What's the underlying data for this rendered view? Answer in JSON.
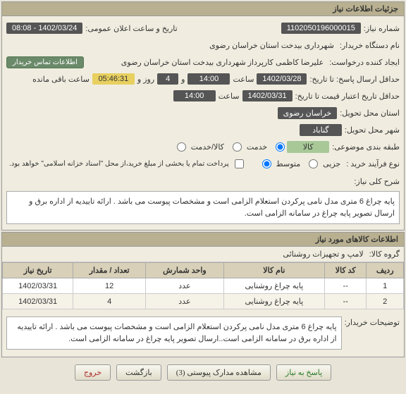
{
  "info_panel": {
    "title": "جزئیات اطلاعات نیاز",
    "need_number_label": "شماره نیاز:",
    "need_number": "1102050196000015",
    "announce_label": "تاریخ و ساعت اعلان عمومی:",
    "announce_value": "1402/03/24 - 08:08",
    "device_label": "نام دستگاه خریدار:",
    "device_value": "شهرداری بیدخت استان خراسان رضوی",
    "creator_label": "ایجاد کننده درخواست:",
    "creator_value": "علیرضا کاظمی کارپرداز شهرداری بیدخت استان خراسان رضوی",
    "contact_btn": "اطلاعات تماس خریدار",
    "deadline_label": "حداقل ارسال پاسخ: تا تاریخ:",
    "deadline_date": "1402/03/28",
    "time_label": "ساعت",
    "deadline_time": "14:00",
    "and_label": "و",
    "days": "4",
    "days_label": "روز و",
    "remain_time": "05:46:31",
    "remain_label": "ساعت باقی مانده",
    "validity_label": "حداقل تاریخ اعتبار قیمت تا تاریخ:",
    "validity_date": "1402/03/31",
    "validity_time": "14:00",
    "province_label": "استان محل تحویل:",
    "province": "خراسان رضوی",
    "city_label": "شهر محل تحویل:",
    "city": "گناباد",
    "topic_label": "طبقه بندی موضوعی:",
    "topic_kala": "کالا",
    "topic_service": "خدمت",
    "topic_both": "کالا/خدمت",
    "process_label": "نوع فرآیند خرید :",
    "process_small": "جزیی",
    "process_medium": "متوسط",
    "payment_note": "پرداخت تمام یا بخشی از مبلغ خرید،از محل \"اسناد خزانه اسلامی\" خواهد بود.",
    "desc_label": "شرح کلی نیاز:",
    "desc_text": "پایه چراغ 6 متری مدل نامی پرکردن استعلام الزامی است و مشخصات پیوست می باشد . ارائه تاییدیه از اداره برق و ارسال تصویر پایه چراغ  در سامانه الزامی است."
  },
  "items_panel": {
    "title": "اطلاعات کالاهای مورد نیاز",
    "group_label": "گروه کالا:",
    "group_value": "لامپ و تجهیزات روشنائی",
    "columns": {
      "row": "ردیف",
      "code": "کد کالا",
      "name": "نام کالا",
      "unit": "واحد شمارش",
      "qty": "تعداد / مقدار",
      "date": "تاریخ نیاز"
    },
    "rows": [
      {
        "row": "1",
        "code": "--",
        "name": "پایه چراغ روشنایی",
        "unit": "عدد",
        "qty": "12",
        "date": "1402/03/31"
      },
      {
        "row": "2",
        "code": "--",
        "name": "پایه چراغ روشنایی",
        "unit": "عدد",
        "qty": "4",
        "date": "1402/03/31"
      }
    ],
    "extra_label": "توضیحات خریدار:",
    "extra_text": "پایه چراغ 6 متری مدل نامی پرکردن استعلام الزامی است و مشخصات پیوست می باشد . ارائه تاییدیه از اداره برق در سامانه الزامی است..ارسال تصویر پایه چراغ در سامانه الزامی است."
  },
  "footer": {
    "respond": "پاسخ به نیاز",
    "attachments": "مشاهده مدارک پیوستی (3)",
    "back": "بازگشت",
    "exit": "خروج"
  }
}
